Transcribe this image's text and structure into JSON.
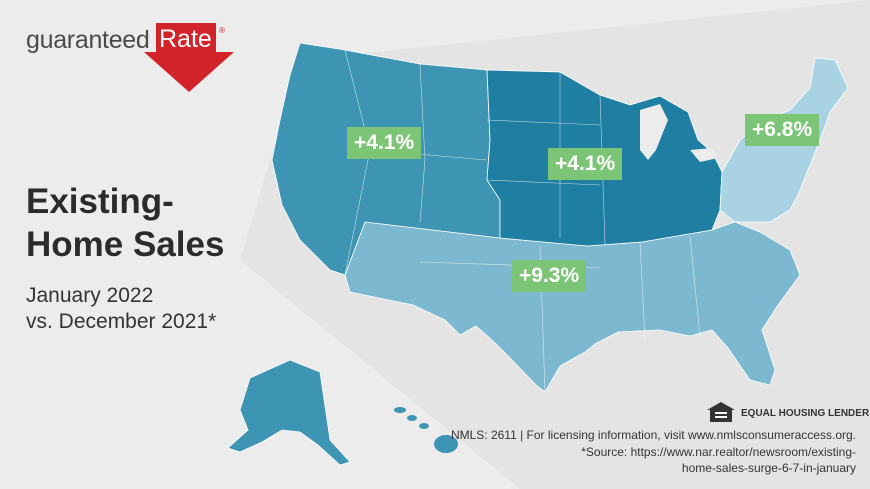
{
  "logo": {
    "text_a": "guaranteed",
    "text_b": "Rate",
    "reg": "®"
  },
  "title": {
    "line1": "Existing-",
    "line2": "Home Sales"
  },
  "subtitle": {
    "line1": "January 2022",
    "line2": "vs. December 2021*"
  },
  "regions": {
    "west": {
      "change": "+4.1%"
    },
    "midwest": {
      "change": "+4.1%"
    },
    "northeast": {
      "change": "+6.8%"
    },
    "south": {
      "change": "+9.3%"
    }
  },
  "colors": {
    "west": "#3d94b3",
    "midwest": "#1f7fa3",
    "northeast": "#a9d3e3",
    "south": "#7cb8cf",
    "badge": "#7cc576",
    "brand_red": "#d2232a"
  },
  "footer": {
    "ehl": "EQUAL HOUSING LENDER",
    "nmls": "NMLS: 2611 | For licensing information, visit www.nmlsconsumeraccess.org.",
    "source_line1": "*Source: https://www.nar.realtor/newsroom/existing-",
    "source_line2": "home-sales-surge-6-7-in-january"
  }
}
